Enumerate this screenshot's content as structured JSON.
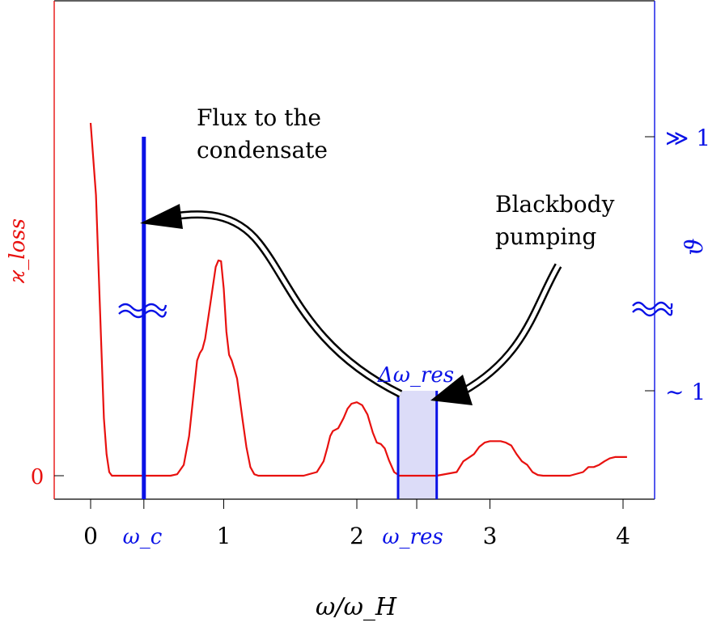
{
  "chart_data": {
    "type": "line",
    "xlabel": "ω/ω_H",
    "x_ticks": [
      "0",
      "1",
      "2",
      "3",
      "4"
    ],
    "x_tick_values": [
      0,
      1,
      2,
      3,
      4
    ],
    "xlim": [
      -0.3,
      4.25
    ],
    "left_axis": {
      "label": "ϰ_loss",
      "tick_label": "0",
      "tick_value": 0,
      "color": "#e8110f"
    },
    "right_axis": {
      "label": "ϑ",
      "tick_labels": [
        "≫ 1",
        "~ 1"
      ],
      "color": "#0a12e6"
    },
    "annotations": {
      "omega_c": "ω_c",
      "omega_c_value": 0.4,
      "omega_res": "ω_res",
      "omega_res_value": 2.45,
      "delta_omega_res": "Δω_res",
      "flux_line1": "Flux to the",
      "flux_line2": "condensate",
      "pump_line1": "Blackbody",
      "pump_line2": "pumping"
    },
    "series": [
      {
        "color": "#e8110f",
        "x": [
          0.0,
          0.04,
          0.08,
          0.1,
          0.12,
          0.14,
          0.16,
          0.2,
          0.3,
          0.4,
          0.5,
          0.6,
          0.65,
          0.7,
          0.74,
          0.78,
          0.8,
          0.82,
          0.84,
          0.86,
          0.9,
          0.94,
          0.96,
          0.98,
          1.0,
          1.02,
          1.04,
          1.06,
          1.1,
          1.14,
          1.17,
          1.2,
          1.23,
          1.26,
          1.3,
          1.4,
          1.6,
          1.7,
          1.75,
          1.78,
          1.8,
          1.82,
          1.86,
          1.9,
          1.93,
          1.96,
          2.0,
          2.04,
          2.08,
          2.12,
          2.15,
          2.18,
          2.21,
          2.24,
          2.28,
          2.32,
          2.36,
          2.4,
          2.6,
          2.75,
          2.8,
          2.84,
          2.88,
          2.92,
          2.96,
          3.0,
          3.04,
          3.08,
          3.12,
          3.16,
          3.2,
          3.24,
          3.28,
          3.32,
          3.36,
          3.4,
          3.45,
          3.6,
          3.7,
          3.74,
          3.78,
          3.82,
          3.86,
          3.9,
          3.94,
          3.98,
          4.03
        ],
        "values": [
          4.9,
          3.9,
          1.8,
          0.8,
          0.3,
          0.05,
          0.0,
          0.0,
          0.0,
          0.0,
          0.0,
          0.0,
          0.02,
          0.15,
          0.55,
          1.25,
          1.6,
          1.7,
          1.76,
          1.9,
          2.4,
          2.9,
          2.99,
          2.98,
          2.6,
          2.0,
          1.68,
          1.6,
          1.35,
          0.8,
          0.4,
          0.12,
          0.02,
          0.0,
          0.0,
          0.0,
          0.0,
          0.05,
          0.2,
          0.4,
          0.55,
          0.62,
          0.66,
          0.8,
          0.93,
          1.0,
          1.02,
          0.98,
          0.85,
          0.6,
          0.46,
          0.44,
          0.38,
          0.22,
          0.05,
          0.0,
          0.0,
          0.0,
          0.0,
          0.05,
          0.2,
          0.25,
          0.3,
          0.4,
          0.46,
          0.48,
          0.48,
          0.48,
          0.46,
          0.42,
          0.3,
          0.2,
          0.15,
          0.05,
          0.01,
          0.0,
          0.0,
          0.0,
          0.05,
          0.12,
          0.12,
          0.15,
          0.2,
          0.24,
          0.26,
          0.26,
          0.26
        ]
      }
    ],
    "blue_lines": [
      {
        "x": 0.4,
        "height": "tall"
      },
      {
        "x": 2.31,
        "height": "short"
      },
      {
        "x": 2.6,
        "height": "short"
      }
    ],
    "shaded_band": {
      "x0": 2.31,
      "x1": 2.6,
      "color": "#dcdcf8"
    }
  }
}
